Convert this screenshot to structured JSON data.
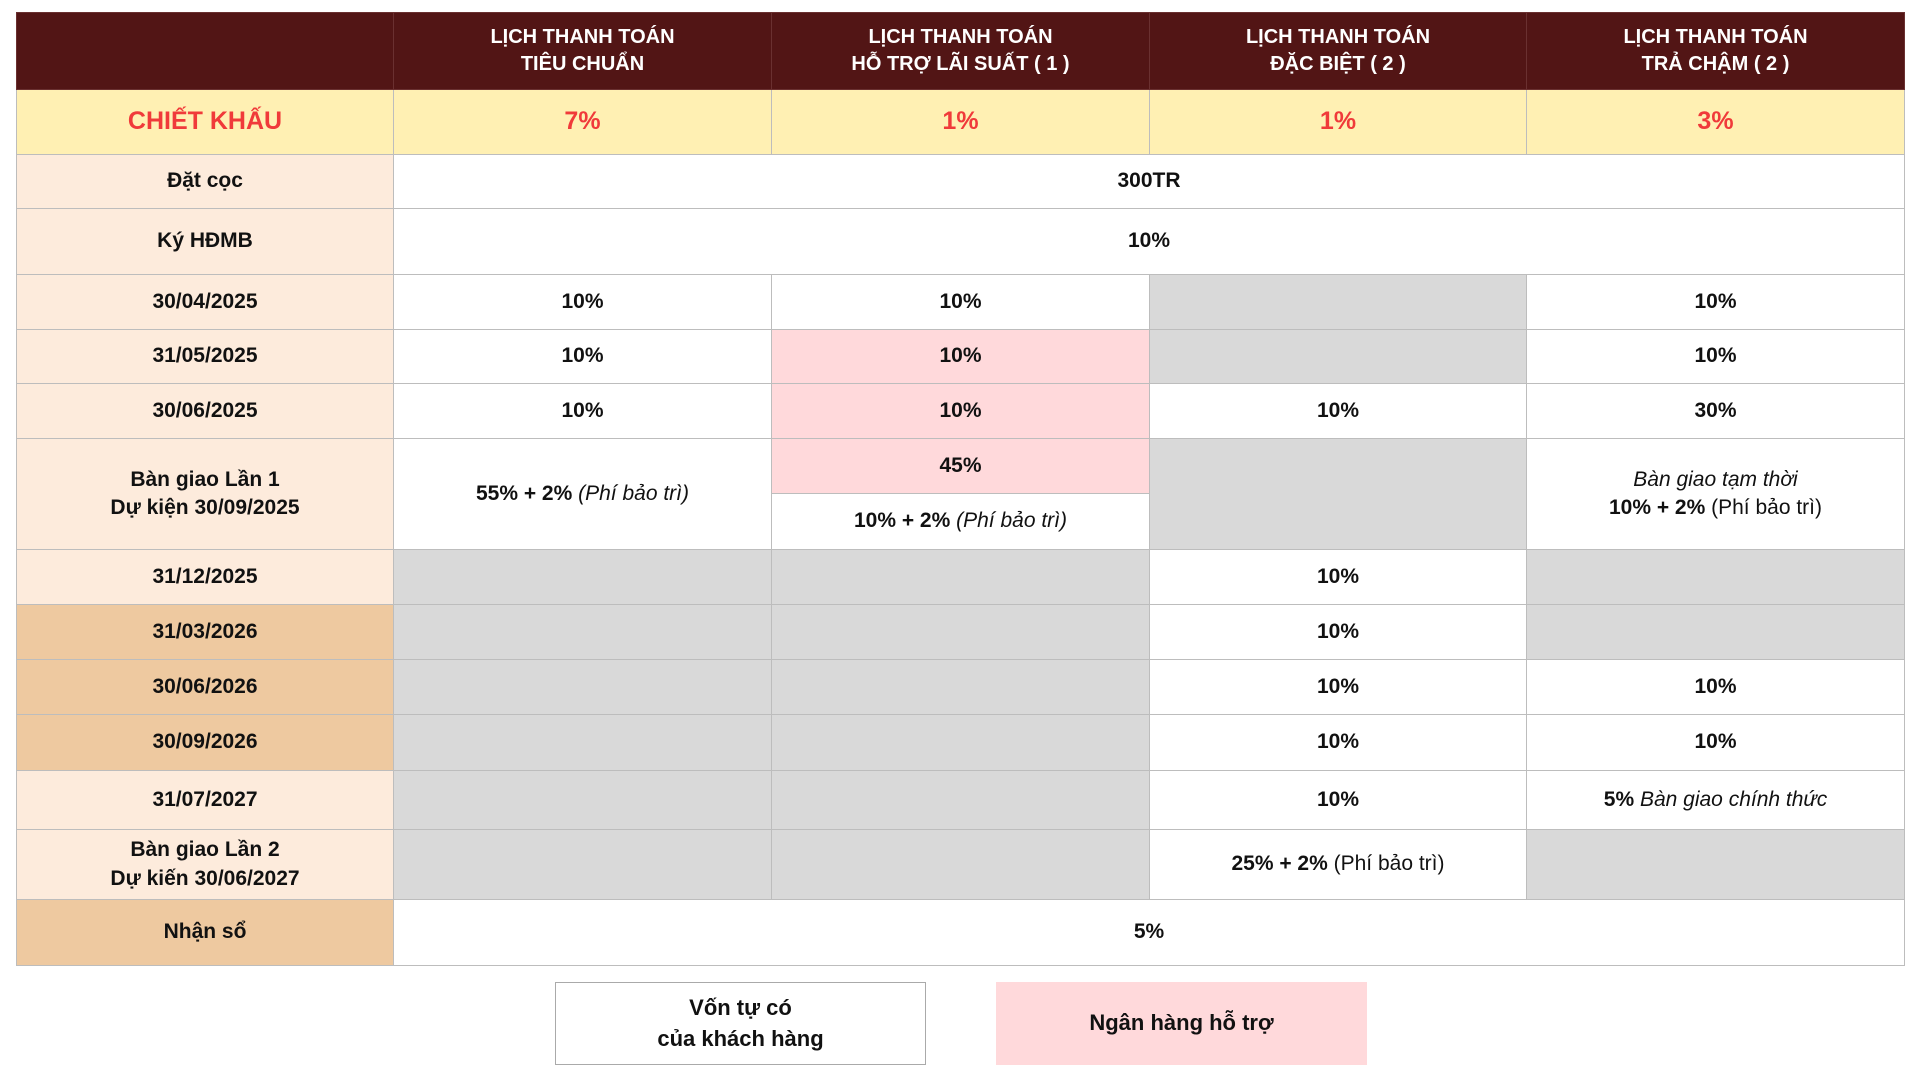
{
  "colors": {
    "header": "#521515",
    "discount_bg": "#fff0b3",
    "discount_text": "#f03a3a",
    "label_light": "#fdebdc",
    "label_dark": "#eec9a0",
    "gray": "#d9d9d9",
    "pink": "#ffd9db",
    "white": "#ffffff"
  },
  "header": {
    "columns": [
      "",
      "LỊCH THANH TOÁN\nTIÊU CHUẨN",
      "LỊCH THANH TOÁN\nHỖ TRỢ LÃI SUẤT ( 1 )",
      "LỊCH THANH TOÁN\nĐẶC BIỆT ( 2 )",
      "LỊCH THANH TOÁN\nTRẢ CHẬM ( 2 )"
    ]
  },
  "discount": {
    "label": "CHIẾT KHẤU",
    "values": [
      "7%",
      "1%",
      "1%",
      "3%"
    ]
  },
  "rows": [
    {
      "label": "Đặt cọc",
      "label_bg": "light",
      "h": 54,
      "cells": [
        {
          "colspan": 4,
          "bg": "white",
          "lines": [
            [
              {
                "t": "300TR",
                "s": "b"
              }
            ]
          ]
        }
      ]
    },
    {
      "label": "Ký HĐMB",
      "label_bg": "light",
      "h": 66,
      "cells": [
        {
          "colspan": 4,
          "bg": "white",
          "lines": [
            [
              {
                "t": "10%",
                "s": "b"
              }
            ]
          ]
        }
      ]
    },
    {
      "label": "30/04/2025",
      "label_bg": "light",
      "h": 55,
      "cells": [
        {
          "bg": "white",
          "lines": [
            [
              {
                "t": "10%",
                "s": "b"
              }
            ]
          ]
        },
        {
          "bg": "white",
          "lines": [
            [
              {
                "t": "10%",
                "s": "b"
              }
            ]
          ]
        },
        {
          "bg": "gray",
          "lines": []
        },
        {
          "bg": "white",
          "lines": [
            [
              {
                "t": "10%",
                "s": "b"
              }
            ]
          ]
        }
      ]
    },
    {
      "label": "31/05/2025",
      "label_bg": "light",
      "h": 54,
      "cells": [
        {
          "bg": "white",
          "lines": [
            [
              {
                "t": "10%",
                "s": "b"
              }
            ]
          ]
        },
        {
          "bg": "pink",
          "lines": [
            [
              {
                "t": "10%",
                "s": "b"
              }
            ]
          ]
        },
        {
          "bg": "gray",
          "lines": []
        },
        {
          "bg": "white",
          "lines": [
            [
              {
                "t": "10%",
                "s": "b"
              }
            ]
          ]
        }
      ]
    },
    {
      "label": "30/06/2025",
      "label_bg": "light",
      "h": 55,
      "cells": [
        {
          "bg": "white",
          "lines": [
            [
              {
                "t": "10%",
                "s": "b"
              }
            ]
          ]
        },
        {
          "bg": "pink",
          "lines": [
            [
              {
                "t": "10%",
                "s": "b"
              }
            ]
          ]
        },
        {
          "bg": "white",
          "lines": [
            [
              {
                "t": "10%",
                "s": "b"
              }
            ]
          ]
        },
        {
          "bg": "white",
          "lines": [
            [
              {
                "t": "30%",
                "s": "b"
              }
            ]
          ]
        }
      ]
    },
    {
      "label": "Bàn giao Lần 1\nDự kiện 30/09/2025",
      "label_bg": "light",
      "label_rowspan": 2,
      "h": 55,
      "cells": [
        {
          "rowspan": 2,
          "bg": "white",
          "lines": [
            [
              {
                "t": "55% + 2% ",
                "s": "b"
              },
              {
                "t": "(Phí bảo trì)",
                "s": "i"
              }
            ]
          ]
        },
        {
          "bg": "pink",
          "lines": [
            [
              {
                "t": "45%",
                "s": "b"
              }
            ]
          ]
        },
        {
          "rowspan": 2,
          "bg": "gray",
          "lines": []
        },
        {
          "rowspan": 2,
          "bg": "white",
          "lines": [
            [
              {
                "t": "Bàn giao tạm thời",
                "s": "i"
              }
            ],
            [
              {
                "t": "10% + 2% ",
                "s": "b"
              },
              {
                "t": "(Phí bảo trì)",
                "s": "n"
              }
            ]
          ]
        }
      ]
    },
    {
      "label": null,
      "h": 56,
      "cells": [
        {
          "bg": "white",
          "lines": [
            [
              {
                "t": "10% + 2% ",
                "s": "b"
              },
              {
                "t": "(Phí bảo trì)",
                "s": "i"
              }
            ]
          ]
        }
      ]
    },
    {
      "label": "31/12/2025",
      "label_bg": "light",
      "h": 55,
      "cells": [
        {
          "bg": "gray",
          "lines": []
        },
        {
          "bg": "gray",
          "lines": []
        },
        {
          "bg": "white",
          "lines": [
            [
              {
                "t": "10%",
                "s": "b"
              }
            ]
          ]
        },
        {
          "bg": "gray",
          "lines": []
        }
      ]
    },
    {
      "label": "31/03/2026",
      "label_bg": "dark",
      "h": 55,
      "cells": [
        {
          "bg": "gray",
          "lines": []
        },
        {
          "bg": "gray",
          "lines": []
        },
        {
          "bg": "white",
          "lines": [
            [
              {
                "t": "10%",
                "s": "b"
              }
            ]
          ]
        },
        {
          "bg": "gray",
          "lines": []
        }
      ]
    },
    {
      "label": "30/06/2026",
      "label_bg": "dark",
      "h": 55,
      "cells": [
        {
          "bg": "gray",
          "lines": []
        },
        {
          "bg": "gray",
          "lines": []
        },
        {
          "bg": "white",
          "lines": [
            [
              {
                "t": "10%",
                "s": "b"
              }
            ]
          ]
        },
        {
          "bg": "white",
          "lines": [
            [
              {
                "t": "10%",
                "s": "b"
              }
            ]
          ]
        }
      ]
    },
    {
      "label": "30/09/2026",
      "label_bg": "dark",
      "h": 56,
      "cells": [
        {
          "bg": "gray",
          "lines": []
        },
        {
          "bg": "gray",
          "lines": []
        },
        {
          "bg": "white",
          "lines": [
            [
              {
                "t": "10%",
                "s": "b"
              }
            ]
          ]
        },
        {
          "bg": "white",
          "lines": [
            [
              {
                "t": "10%",
                "s": "b"
              }
            ]
          ]
        }
      ]
    },
    {
      "label": "31/07/2027",
      "label_bg": "light",
      "h": 59,
      "cells": [
        {
          "bg": "gray",
          "lines": []
        },
        {
          "bg": "gray",
          "lines": []
        },
        {
          "bg": "white",
          "lines": [
            [
              {
                "t": "10%",
                "s": "b"
              }
            ]
          ]
        },
        {
          "bg": "white",
          "lines": [
            [
              {
                "t": "5% ",
                "s": "b"
              },
              {
                "t": "Bàn giao chính thức",
                "s": "i"
              }
            ]
          ]
        }
      ]
    },
    {
      "label": "Bàn giao Lần 2\nDự kiến 30/06/2027",
      "label_bg": "light",
      "h": 70,
      "cells": [
        {
          "bg": "gray",
          "lines": []
        },
        {
          "bg": "gray",
          "lines": []
        },
        {
          "bg": "white",
          "lines": [
            [
              {
                "t": "25% + 2% ",
                "s": "b"
              },
              {
                "t": "(Phí bảo trì)",
                "s": "n"
              }
            ]
          ]
        },
        {
          "bg": "gray",
          "lines": []
        }
      ]
    },
    {
      "label": "Nhận sổ",
      "label_bg": "dark",
      "h": 66,
      "cells": [
        {
          "colspan": 4,
          "bg": "white",
          "lines": [
            [
              {
                "t": "5%",
                "s": "b"
              }
            ]
          ]
        }
      ]
    }
  ],
  "legend": {
    "own_capital": "Vốn tự có\ncủa khách hàng",
    "bank_support": "Ngân hàng hỗ trợ"
  }
}
